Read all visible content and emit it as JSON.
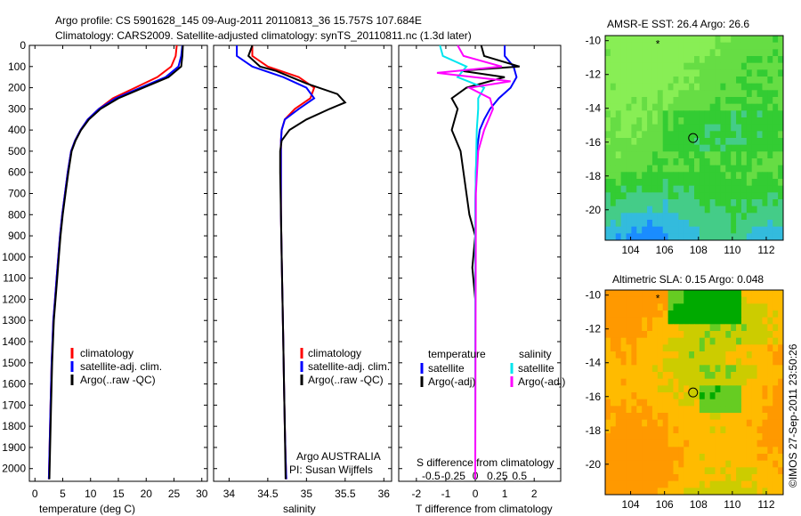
{
  "header": {
    "title_line1": "Argo profile: CS 5901628_145 09-Aug-2011 20110813_36 15.757S 107.684E",
    "title_line2": "Climatology: CARS2009. Satellite-adjusted climatology: synTS_20110811.nc (1.3d later)"
  },
  "watermark": "©IMOS 27-Sep-2011 23:50:26",
  "chart_data": [
    {
      "type": "line",
      "id": "temperature",
      "xlabel": "temperature (deg C)",
      "xlim": [
        -1,
        31
      ],
      "xticks": [
        0,
        5,
        10,
        15,
        20,
        25,
        30
      ],
      "ylim": [
        2060,
        0
      ],
      "yticks": [
        0,
        100,
        200,
        300,
        400,
        500,
        600,
        700,
        800,
        900,
        1000,
        1100,
        1200,
        1300,
        1400,
        1500,
        1600,
        1700,
        1800,
        1900,
        2000
      ],
      "legend": [
        "climatology",
        "satellite-adj. clim.",
        "Argo(..raw -QC)"
      ],
      "series": [
        {
          "name": "climatology",
          "color": "#ff0000",
          "x": [
            25.5,
            25.3,
            24.5,
            22,
            18,
            14,
            11.5,
            9.5,
            8.2,
            7.2,
            6.5,
            5.9,
            5.4,
            4.9,
            4.5,
            4.2,
            3.9,
            3.6,
            3.3,
            3.0,
            2.8,
            2.5
          ],
          "y": [
            0,
            50,
            100,
            150,
            200,
            250,
            300,
            350,
            400,
            450,
            500,
            600,
            700,
            800,
            900,
            1000,
            1100,
            1200,
            1300,
            1500,
            1700,
            2050
          ]
        },
        {
          "name": "satellite-adj. clim.",
          "color": "#0000ff",
          "x": [
            26.5,
            26.3,
            25.8,
            23.5,
            19,
            14.5,
            11.5,
            9.5,
            8.2,
            7.2,
            6.5,
            5.9,
            5.4,
            4.9,
            4.5,
            4.2,
            3.9,
            3.6,
            3.3,
            3.0,
            2.8,
            2.5
          ],
          "y": [
            0,
            50,
            100,
            150,
            200,
            250,
            300,
            350,
            400,
            450,
            500,
            600,
            700,
            800,
            900,
            1000,
            1100,
            1200,
            1300,
            1500,
            1700,
            2050
          ]
        },
        {
          "name": "Argo(..raw -QC)",
          "color": "#000000",
          "x": [
            26.6,
            26.5,
            26.3,
            24,
            19.5,
            15,
            11.8,
            9.7,
            8.3,
            7.3,
            6.6,
            6.0,
            5.5,
            5.0,
            4.6,
            4.3,
            4.0,
            3.7,
            3.4,
            3.1,
            2.9,
            2.6
          ],
          "y": [
            0,
            50,
            100,
            150,
            200,
            250,
            300,
            350,
            400,
            450,
            500,
            600,
            700,
            800,
            900,
            1000,
            1100,
            1200,
            1300,
            1500,
            1700,
            2050
          ]
        }
      ]
    },
    {
      "type": "line",
      "id": "salinity",
      "xlabel": "salinity",
      "xlim": [
        33.8,
        36.1
      ],
      "xticks": [
        34,
        34.5,
        35,
        35.5,
        36
      ],
      "ylim": [
        2060,
        0
      ],
      "legend": [
        "climatology",
        "satellite-adj. clim.",
        "Argo(..raw -QC)"
      ],
      "annotation": [
        "Argo AUSTRALIA",
        "PI: Susan Wijffels"
      ],
      "series": [
        {
          "name": "climatology",
          "color": "#ff0000",
          "x": [
            34.3,
            34.3,
            34.5,
            34.9,
            35.1,
            35.05,
            34.85,
            34.72,
            34.68,
            34.67,
            34.67,
            34.67,
            34.67,
            34.68,
            34.69,
            34.7,
            34.71,
            34.72,
            34.73,
            34.74
          ],
          "y": [
            0,
            50,
            100,
            150,
            200,
            250,
            300,
            350,
            400,
            450,
            500,
            600,
            800,
            1000,
            1200,
            1400,
            1600,
            1800,
            1950,
            2050
          ]
        },
        {
          "name": "satellite-adj. clim.",
          "color": "#0000ff",
          "x": [
            34.1,
            34.1,
            34.3,
            34.7,
            35.0,
            35.1,
            34.9,
            34.72,
            34.68,
            34.67,
            34.67,
            34.67,
            34.67,
            34.68,
            34.69,
            34.7,
            34.71,
            34.72,
            34.73,
            34.74
          ],
          "y": [
            0,
            50,
            100,
            150,
            200,
            250,
            300,
            350,
            400,
            450,
            500,
            600,
            800,
            1000,
            1200,
            1400,
            1600,
            1800,
            1950,
            2050
          ]
        },
        {
          "name": "Argo(..raw -QC)",
          "color": "#000000",
          "x": [
            34.3,
            34.25,
            34.4,
            34.6,
            35.0,
            35.4,
            35.5,
            35.3,
            35.0,
            34.78,
            34.68,
            34.66,
            34.66,
            34.67,
            34.68,
            34.69,
            34.7,
            34.71,
            34.72,
            34.73
          ],
          "y": [
            0,
            50,
            100,
            120,
            180,
            230,
            270,
            300,
            350,
            400,
            450,
            500,
            600,
            800,
            1000,
            1200,
            1400,
            1600,
            1800,
            2050
          ]
        }
      ]
    },
    {
      "type": "line",
      "id": "differences",
      "xlabel": "T difference from climatology",
      "xlabel_top": "S difference from climatology",
      "xlim": [
        -2.6,
        2.9
      ],
      "xticks": [
        -2,
        -1,
        0,
        1,
        2
      ],
      "xticks_top": [
        "-0.5",
        "-0.25",
        "0",
        "0.25",
        "0.5"
      ],
      "ylim": [
        2060,
        0
      ],
      "legend": {
        "temperature_header": "temperature",
        "salinity_header": "salinity",
        "temperature": [
          "satellite",
          "Argo(-adj)"
        ],
        "salinity": [
          "satellite",
          "Argo(-adj)"
        ]
      },
      "series": [
        {
          "name": "temperature satellite",
          "color": "#0000ff",
          "x": [
            1.0,
            1.0,
            1.3,
            1.4,
            1.2,
            0.8,
            0.5,
            0.3,
            0.15,
            0.05,
            0.02,
            0.0,
            0.0,
            0.0,
            0.0
          ],
          "y": [
            0,
            50,
            100,
            150,
            200,
            250,
            300,
            350,
            400,
            500,
            600,
            800,
            1100,
            1500,
            2050
          ]
        },
        {
          "name": "temperature Argo(-adj)",
          "color": "#000000",
          "x": [
            0.2,
            0.3,
            1.5,
            -0.5,
            1.0,
            -0.3,
            -0.8,
            -0.6,
            -0.8,
            -0.5,
            -0.4,
            -0.2,
            0.0,
            -0.1,
            0.0,
            0.0
          ],
          "y": [
            0,
            50,
            100,
            120,
            150,
            200,
            250,
            300,
            400,
            500,
            600,
            800,
            900,
            1050,
            1200,
            2050
          ]
        },
        {
          "name": "salinity satellite",
          "color": "#00e5ee",
          "x": [
            -1.2,
            -1.1,
            -0.3,
            -0.6,
            0.3,
            0.1,
            0.1,
            0.05,
            0.02,
            0.0,
            0.0,
            0.0
          ],
          "y": [
            0,
            50,
            100,
            150,
            200,
            250,
            300,
            400,
            600,
            800,
            1200,
            2050
          ]
        },
        {
          "name": "salinity Argo(-adj)",
          "color": "#ff00ff",
          "x": [
            -0.6,
            -0.4,
            0.9,
            -1.3,
            1.2,
            -0.2,
            0.5,
            0.6,
            0.3,
            0.1,
            0.02,
            0.0
          ],
          "y": [
            0,
            50,
            100,
            130,
            170,
            200,
            250,
            300,
            400,
            500,
            700,
            2050
          ]
        }
      ]
    },
    {
      "type": "heatmap",
      "id": "sst-map",
      "title": "AMSR-E SST: 26.4 Argo: 26.6",
      "xlim": [
        102.5,
        113
      ],
      "ylim": [
        -21.8,
        -9.7
      ],
      "xticks": [
        104,
        106,
        108,
        110,
        112
      ],
      "yticks": [
        -10,
        -12,
        -14,
        -16,
        -18,
        -20
      ],
      "argo_position": {
        "lon": 107.684,
        "lat": -15.757
      },
      "colormap": [
        "#1a8cff",
        "#33bbdd",
        "#44cc88",
        "#33cc33",
        "#66dd44",
        "#88ee55"
      ]
    },
    {
      "type": "heatmap",
      "id": "sla-map",
      "title": "Altimetric SLA: 0.15 Argo: 0.048",
      "xlim": [
        102.5,
        113
      ],
      "ylim": [
        -21.8,
        -9.7
      ],
      "xticks": [
        104,
        106,
        108,
        110,
        112
      ],
      "yticks": [
        -10,
        -12,
        -14,
        -16,
        -18,
        -20
      ],
      "argo_position": {
        "lon": 107.684,
        "lat": -15.757
      },
      "colormap": [
        "#00aa00",
        "#66cc22",
        "#cccc00",
        "#ffbb00",
        "#ff9900"
      ]
    }
  ]
}
